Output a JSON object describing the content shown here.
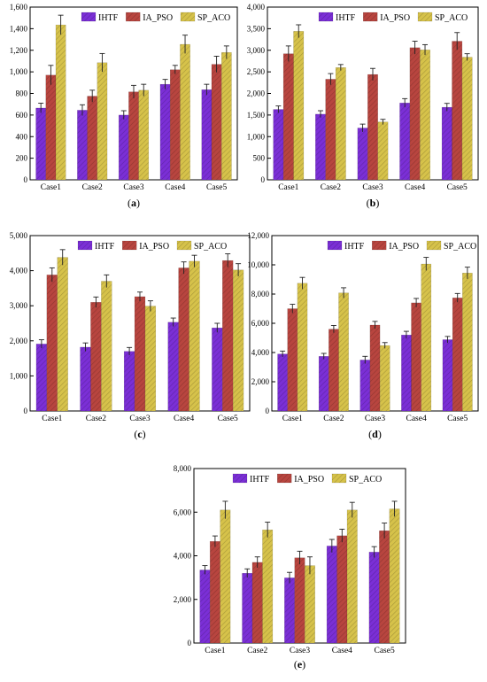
{
  "legend_labels": [
    "IHTF",
    "IA_PSO",
    "SP_ACO"
  ],
  "colors": {
    "IHTF": "#7b2fd6",
    "IA_PSO": "#b8453f",
    "SP_ACO": "#d6c24a",
    "error": "#222222"
  },
  "chart_data": [
    {
      "type": "bar",
      "panel_label": "(a)",
      "categories": [
        "Case1",
        "Case2",
        "Case3",
        "Case4",
        "Case5"
      ],
      "ylim": [
        0,
        1600
      ],
      "yticks": [
        0,
        200,
        400,
        600,
        800,
        1000,
        1200,
        1400,
        1600
      ],
      "ytick_labels": [
        "0",
        "200",
        "400",
        "600",
        "800",
        "1,000",
        "1,200",
        "1,400",
        "1,600"
      ],
      "legend_position": "top",
      "series": [
        {
          "name": "IHTF",
          "values": [
            665,
            645,
            600,
            885,
            835
          ],
          "errors": [
            45,
            50,
            40,
            45,
            50
          ]
        },
        {
          "name": "IA_PSO",
          "values": [
            970,
            775,
            815,
            1020,
            1070
          ],
          "errors": [
            90,
            55,
            60,
            40,
            75
          ]
        },
        {
          "name": "SP_ACO",
          "values": [
            1435,
            1085,
            830,
            1255,
            1180
          ],
          "errors": [
            90,
            85,
            55,
            85,
            60
          ]
        }
      ]
    },
    {
      "type": "bar",
      "panel_label": "(b)",
      "categories": [
        "Case1",
        "Case2",
        "Case3",
        "Case4",
        "Case5"
      ],
      "ylim": [
        0,
        4000
      ],
      "yticks": [
        0,
        500,
        1000,
        1500,
        2000,
        2500,
        3000,
        3500,
        4000
      ],
      "ytick_labels": [
        "0",
        "500",
        "1,000",
        "1,500",
        "2,000",
        "2,500",
        "3,000",
        "3,500",
        "4,000"
      ],
      "legend_position": "top",
      "series": [
        {
          "name": "IHTF",
          "values": [
            1630,
            1520,
            1200,
            1780,
            1680
          ],
          "errors": [
            80,
            80,
            90,
            100,
            90
          ]
        },
        {
          "name": "IA_PSO",
          "values": [
            2920,
            2330,
            2440,
            3060,
            3210
          ],
          "errors": [
            180,
            130,
            140,
            150,
            200
          ]
        },
        {
          "name": "SP_ACO",
          "values": [
            3440,
            2600,
            1340,
            3010,
            2840
          ],
          "errors": [
            150,
            70,
            60,
            120,
            80
          ]
        }
      ]
    },
    {
      "type": "bar",
      "panel_label": "(c)",
      "categories": [
        "Case1",
        "Case2",
        "Case3",
        "Case4",
        "Case5"
      ],
      "ylim": [
        0,
        5000
      ],
      "yticks": [
        0,
        1000,
        2000,
        3000,
        4000,
        5000
      ],
      "ytick_labels": [
        "0",
        "1,000",
        "2,000",
        "3,000",
        "4,000",
        "5,000"
      ],
      "legend_position": "top",
      "series": [
        {
          "name": "IHTF",
          "values": [
            1910,
            1820,
            1700,
            2530,
            2370
          ],
          "errors": [
            120,
            120,
            110,
            120,
            130
          ]
        },
        {
          "name": "IA_PSO",
          "values": [
            3880,
            3100,
            3260,
            4080,
            4290
          ],
          "errors": [
            200,
            150,
            130,
            170,
            190
          ]
        },
        {
          "name": "SP_ACO",
          "values": [
            4380,
            3700,
            2990,
            4270,
            4020
          ],
          "errors": [
            220,
            180,
            150,
            170,
            180
          ]
        }
      ]
    },
    {
      "type": "bar",
      "panel_label": "(d)",
      "categories": [
        "Case1",
        "Case2",
        "Case3",
        "Case4",
        "Case5"
      ],
      "ylim": [
        0,
        12000
      ],
      "yticks": [
        0,
        2000,
        4000,
        6000,
        8000,
        10000,
        12000
      ],
      "ytick_labels": [
        "0",
        "2,000",
        "4,000",
        "6,000",
        "8,000",
        "10,000",
        "12,000"
      ],
      "legend_position": "top",
      "series": [
        {
          "name": "IHTF",
          "values": [
            3900,
            3740,
            3490,
            5200,
            4880
          ],
          "errors": [
            200,
            200,
            250,
            250,
            220
          ]
        },
        {
          "name": "IA_PSO",
          "values": [
            7000,
            5600,
            5880,
            7400,
            7740
          ],
          "errors": [
            300,
            250,
            250,
            300,
            300
          ]
        },
        {
          "name": "SP_ACO",
          "values": [
            8740,
            8080,
            4480,
            10060,
            9440
          ],
          "errors": [
            400,
            350,
            200,
            450,
            400
          ]
        }
      ]
    },
    {
      "type": "bar",
      "panel_label": "(e)",
      "categories": [
        "Case1",
        "Case2",
        "Case3",
        "Case4",
        "Case5"
      ],
      "ylim": [
        0,
        8000
      ],
      "yticks": [
        0,
        2000,
        4000,
        6000,
        8000
      ],
      "ytick_labels": [
        "0",
        "2,000",
        "4,000",
        "6,000",
        "8,000"
      ],
      "legend_position": "top",
      "series": [
        {
          "name": "IHTF",
          "values": [
            3350,
            3200,
            2990,
            4450,
            4170
          ],
          "errors": [
            200,
            200,
            250,
            300,
            250
          ]
        },
        {
          "name": "IA_PSO",
          "values": [
            4660,
            3700,
            3910,
            4920,
            5150
          ],
          "errors": [
            250,
            250,
            300,
            300,
            350
          ]
        },
        {
          "name": "SP_ACO",
          "values": [
            6100,
            5190,
            3550,
            6100,
            6150
          ],
          "errors": [
            400,
            350,
            400,
            350,
            350
          ]
        }
      ]
    }
  ]
}
